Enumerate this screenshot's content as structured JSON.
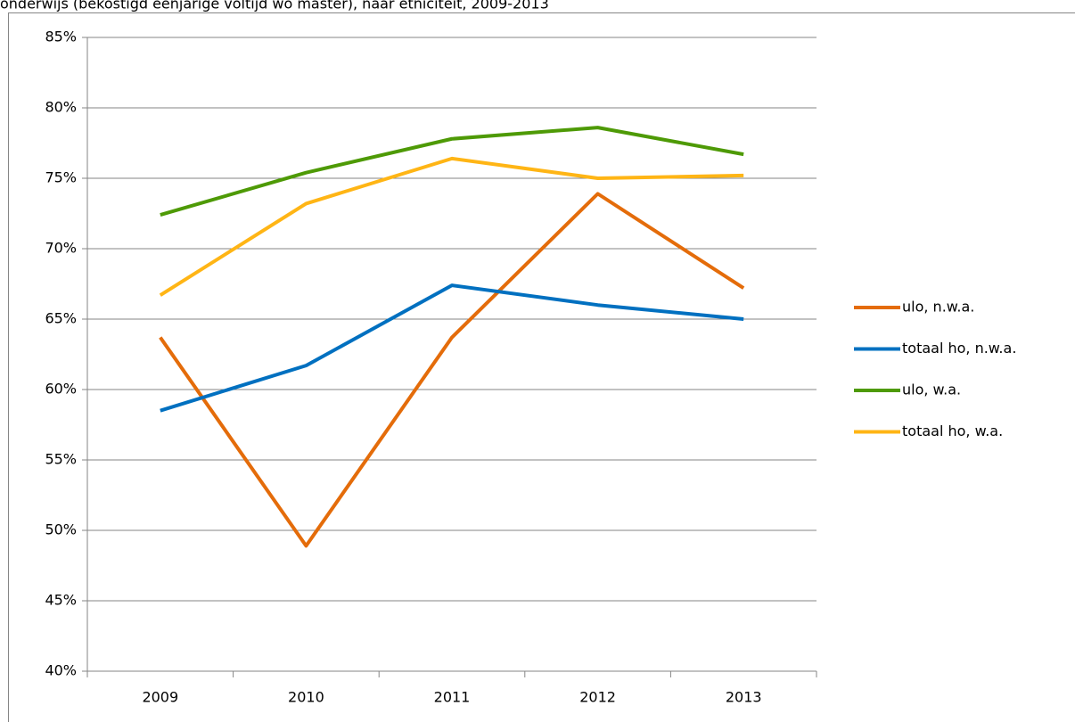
{
  "chart_data": {
    "type": "line",
    "title": "onderwijs (bekostigd eenjarige voltijd wo master), naar etniciteit, 2009-2013",
    "categories": [
      "2009",
      "2010",
      "2011",
      "2012",
      "2013"
    ],
    "series": [
      {
        "name": "ulo, n.w.a.",
        "color": "#e46c0a",
        "values": [
          63.7,
          48.9,
          63.7,
          73.9,
          67.2
        ]
      },
      {
        "name": "totaal ho, n.w.a.",
        "color": "#0070c0",
        "values": [
          58.5,
          61.7,
          67.4,
          66.0,
          65.0
        ]
      },
      {
        "name": "ulo, w.a.",
        "color": "#4e9a06",
        "values": [
          72.4,
          75.4,
          77.8,
          78.6,
          76.7
        ]
      },
      {
        "name": "totaal ho, w.a.",
        "color": "#ffb515",
        "values": [
          66.7,
          73.2,
          76.4,
          75.0,
          75.2
        ]
      }
    ],
    "ylim": [
      40,
      85
    ],
    "yticks": [
      {
        "value": 40,
        "label": "40%"
      },
      {
        "value": 45,
        "label": "45%"
      },
      {
        "value": 50,
        "label": "50%"
      },
      {
        "value": 55,
        "label": "55%"
      },
      {
        "value": 60,
        "label": "60%"
      },
      {
        "value": 65,
        "label": "65%"
      },
      {
        "value": 70,
        "label": "70%"
      },
      {
        "value": 75,
        "label": "75%"
      },
      {
        "value": 80,
        "label": "80%"
      },
      {
        "value": 85,
        "label": "85%"
      }
    ],
    "grid": true,
    "legend": "right"
  }
}
